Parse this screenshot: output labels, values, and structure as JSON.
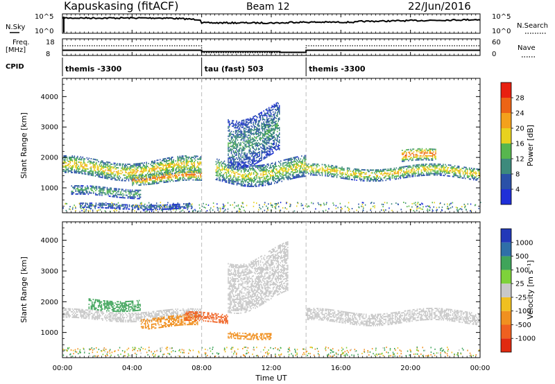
{
  "header": {
    "station": "Kapuskasing (fitACF)",
    "beam": "Beam 12",
    "date": "22/Jun/2016"
  },
  "top_panels": {
    "nsky_label": "N.Sky",
    "nsky_ticks": [
      "10^5",
      "10^0"
    ],
    "nsearch_label": "N.Search",
    "nsearch_ticks": [
      "10^5",
      "10^0"
    ],
    "freq_label_line1": "Freq.",
    "freq_label_line2": "[MHz]",
    "freq_ticks": [
      "18",
      "8"
    ],
    "nave_label": "Nave",
    "nave_ticks": [
      "60",
      "0"
    ],
    "cpid_label": "CPID"
  },
  "cpid_segments": [
    {
      "start_hour": 0,
      "end_hour": 8,
      "label": "themis -3300"
    },
    {
      "start_hour": 8,
      "end_hour": 14,
      "label": "tau (fast) 503"
    },
    {
      "start_hour": 14,
      "end_hour": 24,
      "label": "themis -3300"
    }
  ],
  "x_axis": {
    "label": "Time UT",
    "ticks": [
      "00:00",
      "04:00",
      "08:00",
      "12:00",
      "16:00",
      "20:00",
      "00:00"
    ],
    "tick_hours": [
      0,
      4,
      8,
      12,
      16,
      20,
      24
    ]
  },
  "y_axis": {
    "label": "Slant Range [km]",
    "ticks": [
      "1000",
      "2000",
      "3000",
      "4000"
    ],
    "tick_values": [
      1000,
      2000,
      3000,
      4000
    ],
    "ylim": [
      180,
      4600
    ]
  },
  "power_colorbar": {
    "label": "Power [dB]",
    "ticks": [
      "4",
      "8",
      "12",
      "16",
      "20",
      "24",
      "28"
    ],
    "colors": [
      "#1f2fd8",
      "#2b51a8",
      "#3d8a7c",
      "#57b64e",
      "#e8d21e",
      "#f4a11c",
      "#ed6416",
      "#e82010"
    ]
  },
  "velocity_colorbar": {
    "label": "Velocity [m s⁻¹]",
    "ticks": [
      "1000",
      "500",
      "100",
      "25",
      "-25",
      "-100",
      "-500",
      "-1000"
    ],
    "colors": [
      "#2238b8",
      "#2f6fa8",
      "#3fa45a",
      "#7ed23a",
      "#c8c8c8",
      "#f0c020",
      "#f09020",
      "#ef6020",
      "#e02a10"
    ]
  },
  "chart_data": [
    {
      "type": "heatmap",
      "title": "Power",
      "xlabel": "Time UT",
      "ylabel": "Slant Range [km]",
      "x_range_hours": [
        0,
        24
      ],
      "ylim": [
        180,
        4600
      ],
      "color_scale": "Power [dB]",
      "features": [
        {
          "t0": 0.0,
          "t1": 8.0,
          "r0": 1350,
          "r1": 1900,
          "power": 18
        },
        {
          "t0": 0.5,
          "t1": 4.5,
          "r0": 700,
          "r1": 1000,
          "power": 12
        },
        {
          "t0": 1.0,
          "t1": 7.5,
          "r0": 300,
          "r1": 450,
          "power": 8
        },
        {
          "t0": 4.0,
          "t1": 8.0,
          "r0": 1150,
          "r1": 1500,
          "power": 22
        },
        {
          "t0": 8.8,
          "t1": 14.0,
          "r0": 1200,
          "r1": 1900,
          "power": 16
        },
        {
          "t0": 9.5,
          "t1": 12.5,
          "r0": 2000,
          "r1": 3600,
          "power": 10
        },
        {
          "t0": 14.0,
          "t1": 24.0,
          "r0": 1300,
          "r1": 1700,
          "power": 18
        },
        {
          "t0": 19.5,
          "t1": 21.5,
          "r0": 1800,
          "r1": 2200,
          "power": 24
        }
      ]
    },
    {
      "type": "heatmap",
      "title": "Velocity",
      "xlabel": "Time UT",
      "ylabel": "Slant Range [km]",
      "x_range_hours": [
        0,
        24
      ],
      "ylim": [
        180,
        4600
      ],
      "color_scale": "Velocity [m s⁻¹]",
      "features": [
        {
          "t0": 0.0,
          "t1": 8.0,
          "r0": 1400,
          "r1": 1700,
          "velocity": 0
        },
        {
          "t0": 1.5,
          "t1": 4.5,
          "r0": 1750,
          "r1": 2100,
          "velocity": 150
        },
        {
          "t0": 4.5,
          "t1": 7.8,
          "r0": 1150,
          "r1": 1500,
          "velocity": -200
        },
        {
          "t0": 7.0,
          "t1": 9.5,
          "r0": 1300,
          "r1": 1600,
          "velocity": -600
        },
        {
          "t0": 9.5,
          "t1": 12.0,
          "r0": 800,
          "r1": 1000,
          "velocity": -150
        },
        {
          "t0": 9.5,
          "t1": 13.0,
          "r0": 2000,
          "r1": 3600,
          "velocity": 0
        },
        {
          "t0": 14.0,
          "t1": 24.0,
          "r0": 1300,
          "r1": 1700,
          "velocity": 0
        }
      ]
    }
  ]
}
